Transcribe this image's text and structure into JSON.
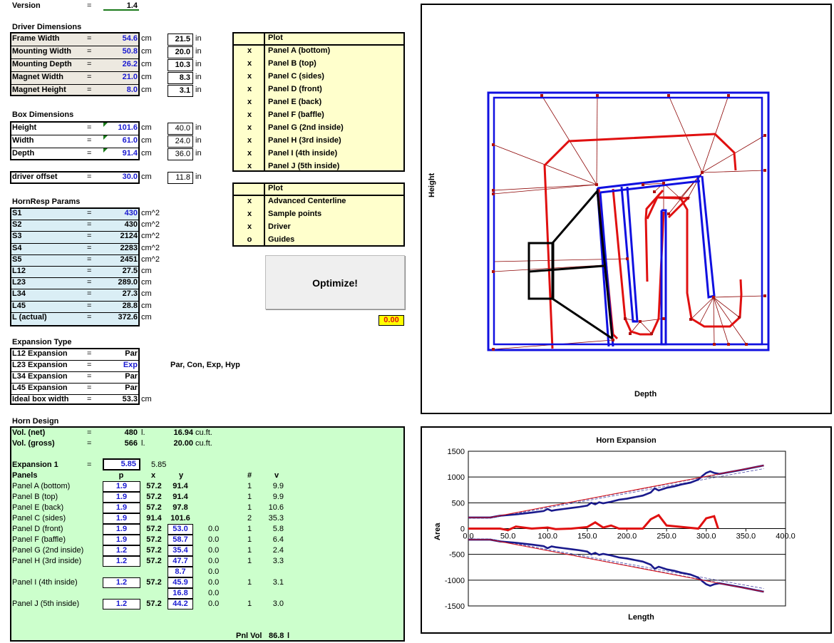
{
  "version": {
    "label": "Version",
    "eq": "=",
    "value": "1.4"
  },
  "driver": {
    "title": "Driver Dimensions",
    "rows": [
      {
        "label": "Frame Width",
        "eq": "=",
        "cm": "54.6",
        "cm_unit": "cm",
        "in": "21.5",
        "in_unit": "in"
      },
      {
        "label": "Mounting Width",
        "eq": "=",
        "cm": "50.8",
        "cm_unit": "cm",
        "in": "20.0",
        "in_unit": "in"
      },
      {
        "label": "Mounting Depth",
        "eq": "=",
        "cm": "26.2",
        "cm_unit": "cm",
        "in": "10.3",
        "in_unit": "in"
      },
      {
        "label": "Magnet Width",
        "eq": "=",
        "cm": "21.0",
        "cm_unit": "cm",
        "in": "8.3",
        "in_unit": "in"
      },
      {
        "label": "Magnet Height",
        "eq": "=",
        "cm": "8.0",
        "cm_unit": "cm",
        "in": "3.1",
        "in_unit": "in"
      }
    ]
  },
  "box": {
    "title": "Box Dimensions",
    "rows": [
      {
        "label": "Height",
        "eq": "=",
        "cm": "101.6",
        "cm_unit": "cm",
        "in": "40.0",
        "in_unit": "in"
      },
      {
        "label": "Width",
        "eq": "=",
        "cm": "61.0",
        "cm_unit": "cm",
        "in": "24.0",
        "in_unit": "in"
      },
      {
        "label": "Depth",
        "eq": "=",
        "cm": "91.4",
        "cm_unit": "cm",
        "in": "36.0",
        "in_unit": "in"
      }
    ],
    "offset": {
      "label": "driver offset",
      "eq": "=",
      "cm": "30.0",
      "cm_unit": "cm",
      "in": "11.8",
      "in_unit": "in"
    }
  },
  "plot_panels": {
    "header": "Plot",
    "items": [
      {
        "mark": "x",
        "label": "Panel A (bottom)"
      },
      {
        "mark": "x",
        "label": "Panel B (top)"
      },
      {
        "mark": "x",
        "label": "Panel C (sides)"
      },
      {
        "mark": "x",
        "label": "Panel D (front)"
      },
      {
        "mark": "x",
        "label": "Panel E (back)"
      },
      {
        "mark": "x",
        "label": "Panel F (baffle)"
      },
      {
        "mark": "x",
        "label": "Panel G (2nd inside)"
      },
      {
        "mark": "x",
        "label": "Panel H (3rd inside)"
      },
      {
        "mark": "x",
        "label": "Panel I (4th inside)"
      },
      {
        "mark": "x",
        "label": "Panel J (5th inside)"
      }
    ]
  },
  "plot_extras": {
    "header": "Plot",
    "items": [
      {
        "mark": "x",
        "label": "Advanced Centerline"
      },
      {
        "mark": "x",
        "label": "Sample points"
      },
      {
        "mark": "x",
        "label": "Driver"
      },
      {
        "mark": "o",
        "label": "Guides"
      }
    ]
  },
  "hornresp": {
    "title": "HornResp Params",
    "rows": [
      {
        "label": "S1",
        "eq": "=",
        "value": "430",
        "unit": "cm^2",
        "blue": true
      },
      {
        "label": "S2",
        "eq": "=",
        "value": "430",
        "unit": "cm^2",
        "blue": false
      },
      {
        "label": "S3",
        "eq": "=",
        "value": "2124",
        "unit": "cm^2",
        "blue": false
      },
      {
        "label": "S4",
        "eq": "=",
        "value": "2283",
        "unit": "cm^2",
        "blue": false
      },
      {
        "label": "S5",
        "eq": "=",
        "value": "2451",
        "unit": "cm^2",
        "blue": false
      },
      {
        "label": "L12",
        "eq": "=",
        "value": "27.5",
        "unit": "cm",
        "blue": false
      },
      {
        "label": "L23",
        "eq": "=",
        "value": "289.0",
        "unit": "cm",
        "blue": false
      },
      {
        "label": "L34",
        "eq": "=",
        "value": "27.3",
        "unit": "cm",
        "blue": false
      },
      {
        "label": "L45",
        "eq": "=",
        "value": "28.8",
        "unit": "cm",
        "blue": false
      },
      {
        "label": "L (actual)",
        "eq": "=",
        "value": "372.6",
        "unit": "cm",
        "blue": false
      }
    ]
  },
  "optimize": {
    "label": "Optimize!",
    "result": "0.00"
  },
  "expansion": {
    "title": "Expansion Type",
    "hint": "Par, Con, Exp, Hyp",
    "rows": [
      {
        "label": "L12 Expansion",
        "eq": "=",
        "value": "Par",
        "blue": false
      },
      {
        "label": "L23 Expansion",
        "eq": "=",
        "value": "Exp",
        "blue": true
      },
      {
        "label": "L34 Expansion",
        "eq": "=",
        "value": "Par",
        "blue": false
      },
      {
        "label": "L45 Expansion",
        "eq": "=",
        "value": "Par",
        "blue": false
      },
      {
        "label": "Ideal box width",
        "eq": "=",
        "value": "53.3",
        "blue": false,
        "unit": "cm"
      }
    ]
  },
  "horn_design": {
    "title": "Horn Design",
    "vol_net": {
      "label": "Vol. (net)",
      "eq": "=",
      "value": "480",
      "unit": "l.",
      "cuft": "16.94",
      "cuft_unit": "cu.ft."
    },
    "vol_gross": {
      "label": "Vol. (gross)",
      "eq": "=",
      "value": "566",
      "unit": "l.",
      "cuft": "20.00",
      "cuft_unit": "cu.ft."
    },
    "expansion1": {
      "label": "Expansion 1",
      "eq": "=",
      "value": "5.85",
      "echo": "5.85"
    },
    "cols": {
      "panels": "Panels",
      "p": "p",
      "x": "x",
      "y": "y",
      "n": "#",
      "v": "v"
    },
    "panels": [
      {
        "label": "Panel A (bottom)",
        "p": "1.9",
        "x": "57.2",
        "y": "91.4",
        "z": "",
        "n": "1",
        "v": "9.9",
        "y_box": false
      },
      {
        "label": "Panel B (top)",
        "p": "1.9",
        "x": "57.2",
        "y": "91.4",
        "z": "",
        "n": "1",
        "v": "9.9",
        "y_box": false
      },
      {
        "label": "Panel E (back)",
        "p": "1.9",
        "x": "57.2",
        "y": "97.8",
        "z": "",
        "n": "1",
        "v": "10.6",
        "y_box": false
      },
      {
        "label": "Panel C (sides)",
        "p": "1.9",
        "x": "91.4",
        "y": "101.6",
        "z": "",
        "n": "2",
        "v": "35.3",
        "y_box": false
      },
      {
        "label": "Panel D (front)",
        "p": "1.9",
        "x": "57.2",
        "y": "53.0",
        "z": "0.0",
        "n": "1",
        "v": "5.8",
        "y_box": true
      },
      {
        "label": "Panel F (baffle)",
        "p": "1.9",
        "x": "57.2",
        "y": "58.7",
        "z": "0.0",
        "n": "1",
        "v": "6.4",
        "y_box": true
      },
      {
        "label": "Panel G (2nd inside)",
        "p": "1.2",
        "x": "57.2",
        "y": "35.4",
        "z": "0.0",
        "n": "1",
        "v": "2.4",
        "y_box": true
      },
      {
        "label": "Panel H (3rd inside)",
        "p": "1.2",
        "x": "57.2",
        "y": "47.7",
        "z": "0.0",
        "n": "1",
        "v": "3.3",
        "y_box": true
      },
      {
        "label": "",
        "p": "",
        "x": "",
        "y": "8.7",
        "z": "0.0",
        "n": "",
        "v": "",
        "y_box": true
      },
      {
        "label": "Panel I (4th inside)",
        "p": "1.2",
        "x": "57.2",
        "y": "45.9",
        "z": "0.0",
        "n": "1",
        "v": "3.1",
        "y_box": true
      },
      {
        "label": "",
        "p": "",
        "x": "",
        "y": "16.8",
        "z": "0.0",
        "n": "",
        "v": "",
        "y_box": true
      },
      {
        "label": "Panel J (5th inside)",
        "p": "1.2",
        "x": "57.2",
        "y": "44.2",
        "z": "0.0",
        "n": "1",
        "v": "3.0",
        "y_box": true
      }
    ],
    "pnl_vol": {
      "label": "Pnl Vol",
      "value": "86.8",
      "unit": "l"
    }
  },
  "layout_chart": {
    "ylabel": "Height",
    "xlabel": "Depth"
  },
  "chart_data": {
    "type": "line",
    "title": "Horn Expansion",
    "xlabel": "Length",
    "ylabel": "Area",
    "xlim": [
      0,
      400
    ],
    "ylim": [
      -1500,
      1500
    ],
    "xticks": [
      "0.0",
      "50.0",
      "100.0",
      "150.0",
      "200.0",
      "250.0",
      "300.0",
      "350.0",
      "400.0"
    ],
    "yticks": [
      "1500",
      "1000",
      "500",
      "0",
      "-500",
      "-1000",
      "-1500"
    ],
    "grid": true,
    "series": [
      {
        "color": "#1a1a8c",
        "x": [
          0,
          27.5,
          40,
          60,
          80,
          95,
          100,
          105,
          110,
          120,
          130,
          140,
          150,
          155,
          160,
          165,
          170,
          180,
          190,
          200,
          210,
          220,
          230,
          235,
          240,
          250,
          260,
          270,
          280,
          290,
          295,
          300,
          305,
          310,
          316.5,
          345,
          372.6
        ],
        "y": [
          215,
          215,
          250,
          275,
          310,
          340,
          380,
          345,
          360,
          380,
          400,
          420,
          445,
          500,
          470,
          510,
          490,
          520,
          560,
          580,
          610,
          640,
          700,
          780,
          740,
          790,
          820,
          860,
          890,
          950,
          1020,
          1080,
          1110,
          1080,
          1060,
          1140,
          1225
        ]
      },
      {
        "color": "#1a1a8c",
        "x": [
          0,
          27.5,
          40,
          60,
          80,
          95,
          100,
          105,
          110,
          120,
          130,
          140,
          150,
          155,
          160,
          165,
          170,
          180,
          190,
          200,
          210,
          220,
          230,
          235,
          240,
          250,
          260,
          270,
          280,
          290,
          295,
          300,
          305,
          310,
          316.5,
          345,
          372.6
        ],
        "y": [
          -215,
          -215,
          -250,
          -275,
          -310,
          -340,
          -380,
          -345,
          -360,
          -380,
          -400,
          -420,
          -445,
          -500,
          -470,
          -510,
          -490,
          -520,
          -560,
          -580,
          -610,
          -640,
          -700,
          -780,
          -740,
          -790,
          -820,
          -860,
          -890,
          -950,
          -1020,
          -1080,
          -1110,
          -1080,
          -1060,
          -1140,
          -1225
        ]
      },
      {
        "color": "#e01010",
        "x": [
          0,
          27.5,
          316.5,
          372.6
        ],
        "y": [
          215,
          215,
          1062,
          1225
        ]
      },
      {
        "color": "#e01010",
        "x": [
          0,
          27.5,
          316.5,
          372.6
        ],
        "y": [
          -215,
          -215,
          -1062,
          -1225
        ]
      },
      {
        "color": "#e01010",
        "x": [
          0,
          40,
          50,
          60,
          80,
          100,
          110,
          130,
          150,
          160,
          170,
          180,
          190,
          200,
          220,
          230,
          240,
          250,
          290,
          300,
          310,
          315
        ],
        "y": [
          0,
          0,
          -30,
          40,
          0,
          20,
          -10,
          0,
          30,
          120,
          20,
          60,
          0,
          0,
          0,
          180,
          260,
          60,
          0,
          200,
          240,
          0
        ]
      }
    ]
  }
}
